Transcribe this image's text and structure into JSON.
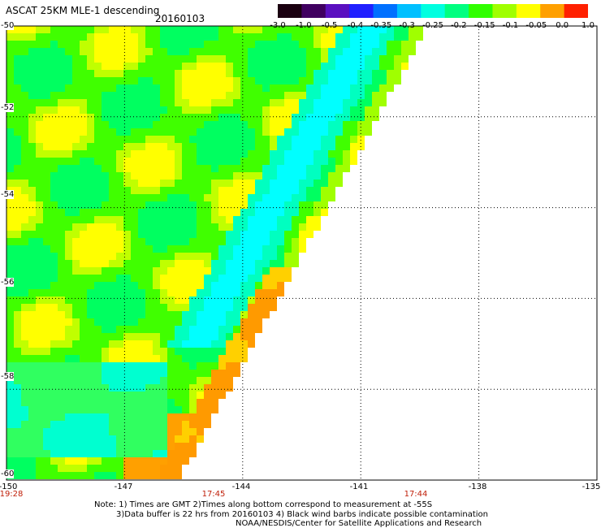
{
  "header": {
    "title": "ASCAT 25KM MLE-1 descending",
    "date": "20160103"
  },
  "colorbar": {
    "labels": [
      "-3.0",
      "-1.0",
      "-0.5",
      "-0.4",
      "-0.35",
      "-0.3",
      "-0.25",
      "-0.2",
      "-0.15",
      "-0.1",
      "-0.05",
      "0.0",
      "1.0"
    ],
    "colors": [
      "#1a0010",
      "#400060",
      "#5a10c0",
      "#2020ff",
      "#0070ff",
      "#00c0ff",
      "#00ffe0",
      "#00ff80",
      "#30ff00",
      "#a0ff00",
      "#ffff00",
      "#ffa000",
      "#ff2000"
    ]
  },
  "axes": {
    "x_ticks": [
      "-150",
      "-147",
      "-144",
      "-141",
      "-138",
      "-135"
    ],
    "y_ticks": [
      "-50",
      "-52",
      "-54",
      "-56",
      "-58",
      "-60"
    ],
    "lon_range": [
      -150,
      -135
    ],
    "lat_range": [
      -60,
      -50
    ]
  },
  "time_labels": [
    {
      "text": "19:28",
      "lon": -150
    },
    {
      "text": "17:45",
      "lon": -145
    },
    {
      "text": "17:44",
      "lon": -139.5
    }
  ],
  "notes": {
    "line1": "Note: 1) Times are GMT 2)Times along bottom correspond to measurement at -55S",
    "line2": "3)Data buffer is 22 hrs from 20160103 4) Black wind barbs indicate possible contamination",
    "line3": "NOAA/NESDIS/Center for Satellite Applications and Research"
  }
}
